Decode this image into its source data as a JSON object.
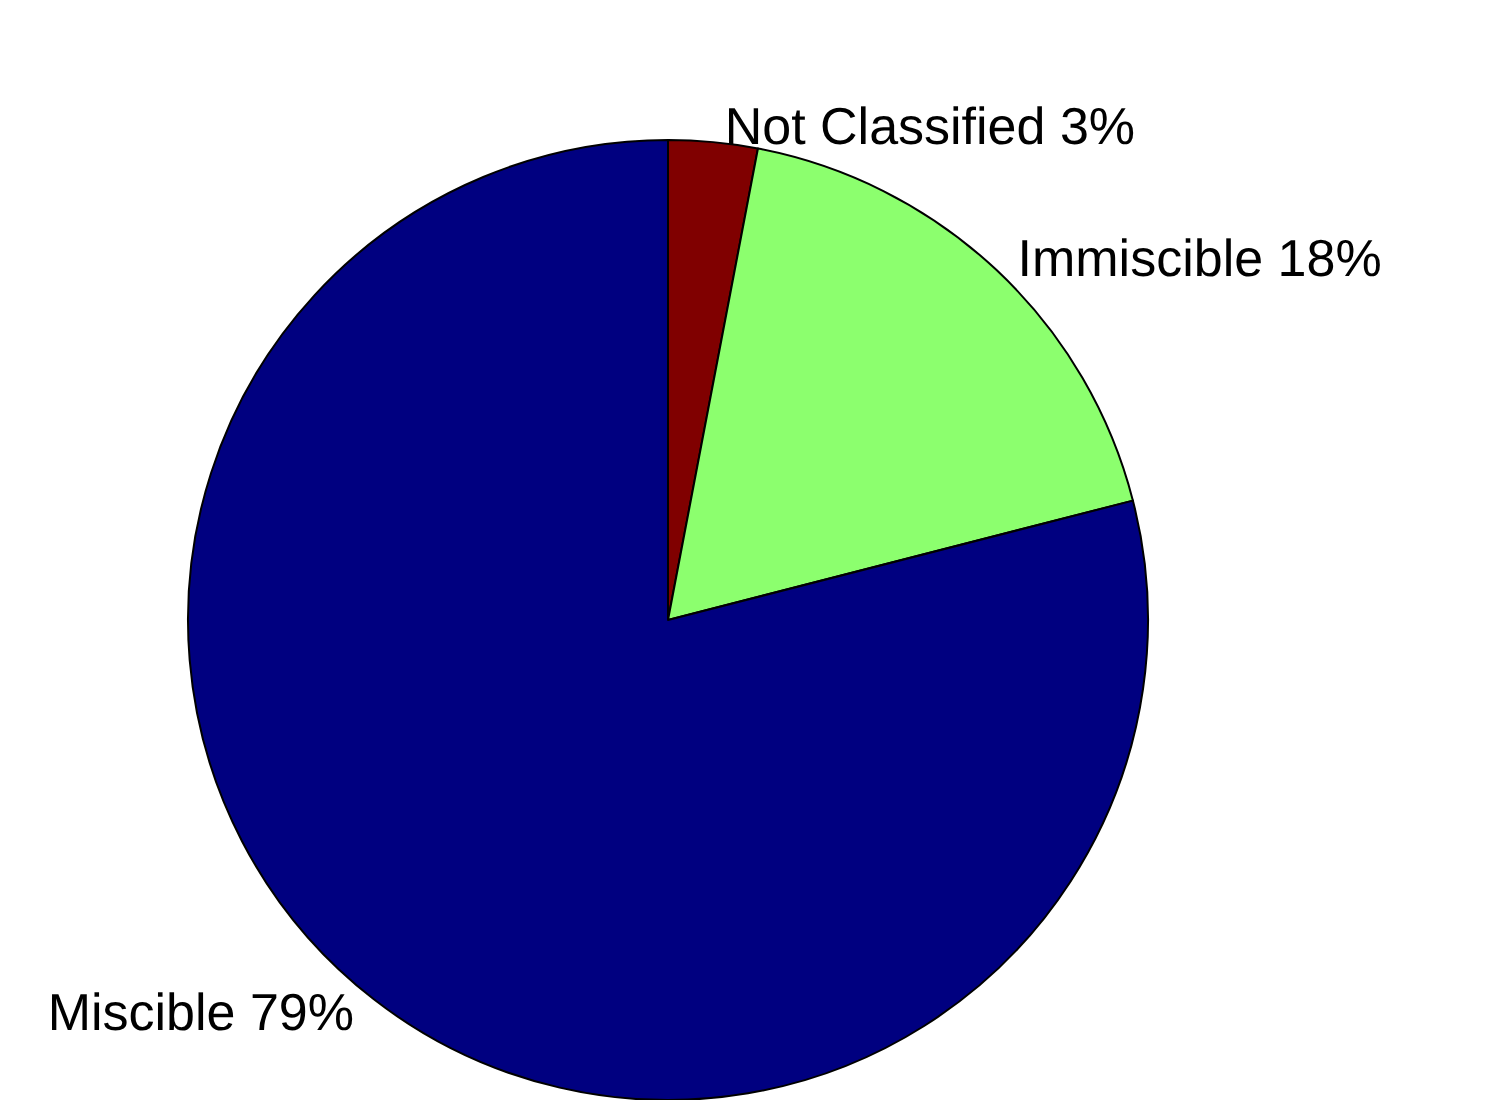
{
  "chart_data": {
    "type": "pie",
    "categories": [
      "Not Classified",
      "Immiscible",
      "Miscible"
    ],
    "values": [
      3,
      18,
      79
    ],
    "colors": [
      "#800000",
      "#8cff6e",
      "#000080"
    ],
    "value_labels": [
      "3%",
      "18%",
      "79%"
    ]
  }
}
